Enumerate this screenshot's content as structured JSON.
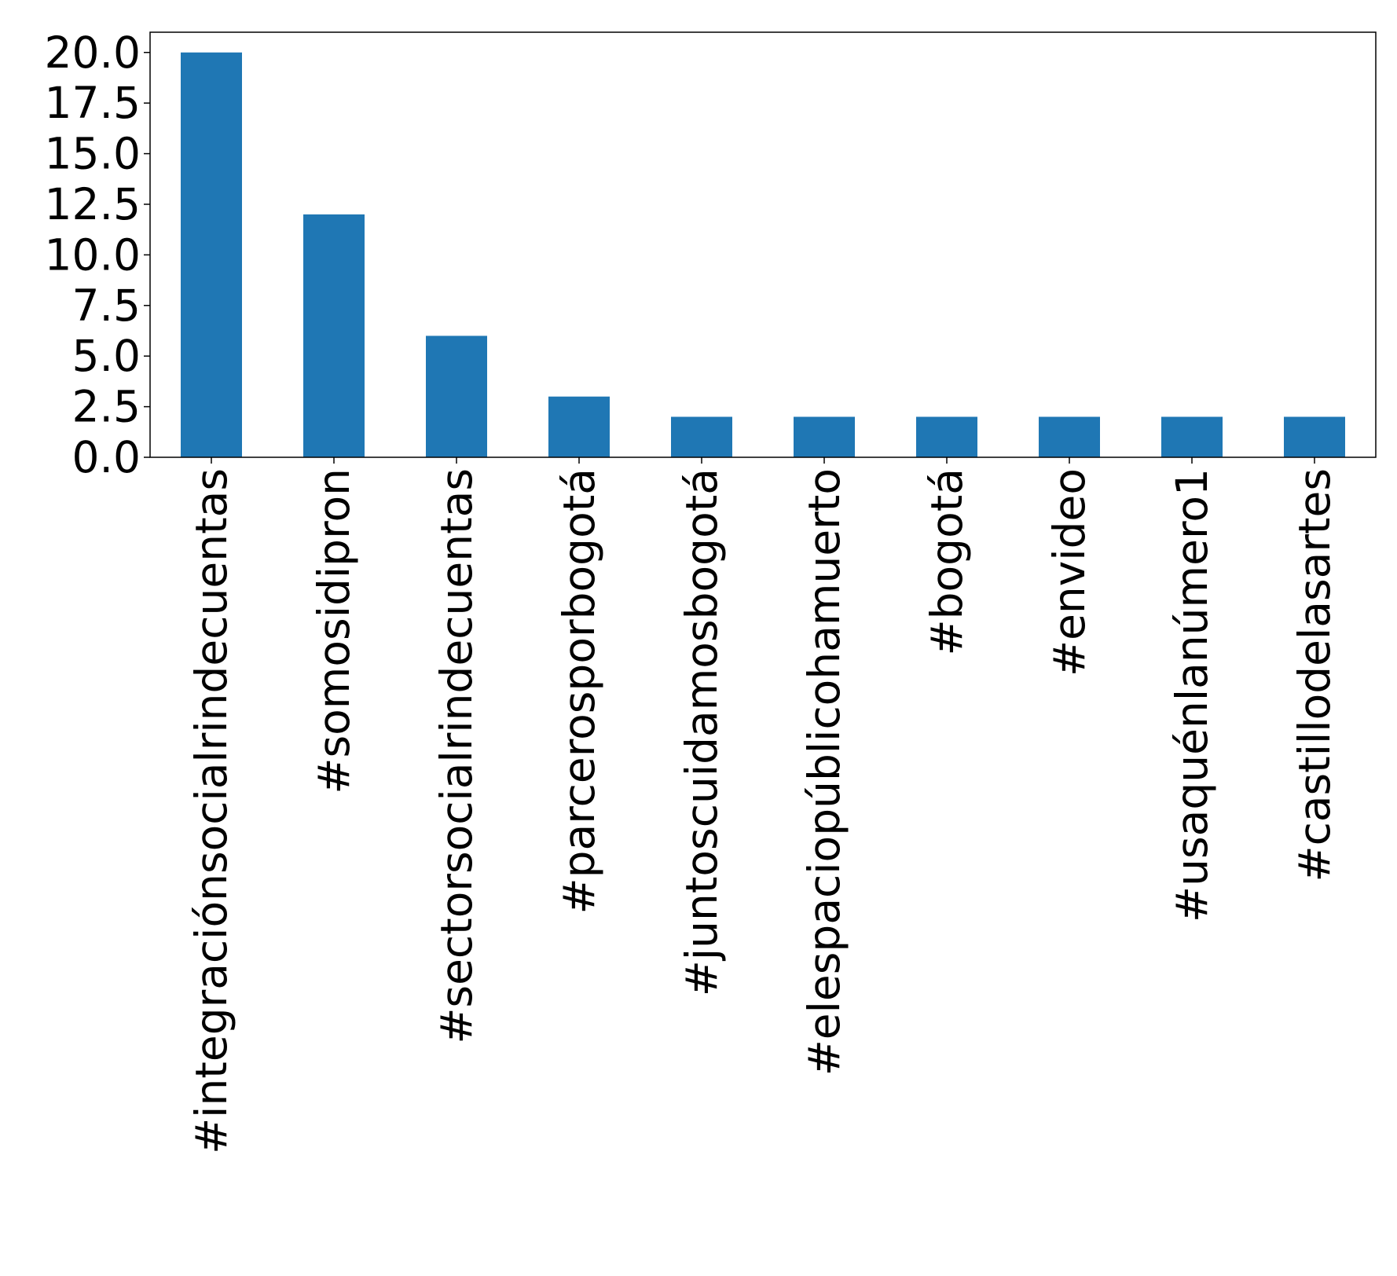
{
  "chart_data": {
    "type": "bar",
    "title": "",
    "xlabel": "",
    "ylabel": "",
    "categories": [
      "#integraciónsocialrindecuentas",
      "#somosidipron",
      "#sectorsocialrindecuentas",
      "#parcerosporbogotá",
      "#juntoscuidamosbogotá",
      "#elespaciopúblicohamuerto",
      "#bogotá",
      "#envideo",
      "#usaquénlanúmero1",
      "#castillodelasartes"
    ],
    "values": [
      20,
      12,
      6,
      3,
      2,
      2,
      2,
      2,
      2,
      2
    ],
    "ylim": [
      0,
      21
    ],
    "yticks": [
      0.0,
      2.5,
      5.0,
      7.5,
      10.0,
      12.5,
      15.0,
      17.5,
      20.0
    ],
    "ytick_labels": [
      "0.0",
      "2.5",
      "5.0",
      "7.5",
      "10.0",
      "12.5",
      "15.0",
      "17.5",
      "20.0"
    ],
    "grid": false,
    "legend": "none",
    "bar_color": "#1f77b4"
  }
}
